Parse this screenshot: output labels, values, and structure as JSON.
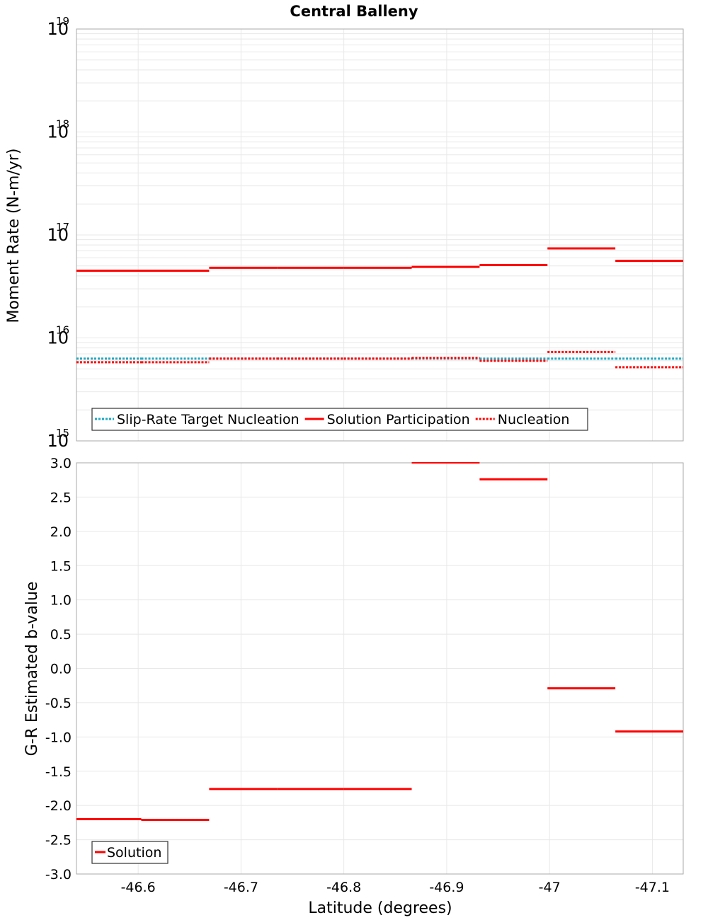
{
  "title": "Central Balleny",
  "x_axis": {
    "label": "Latitude (degrees)",
    "range": [
      -46.54,
      -47.13
    ],
    "ticks": [
      -46.6,
      -46.7,
      -46.8,
      -46.9,
      -47,
      -47.1
    ],
    "tick_labels": [
      "-46.6",
      "-46.7",
      "-46.8",
      "-46.9",
      "-47",
      "-47.1"
    ]
  },
  "colors": {
    "target": "#1ea9c2",
    "solution": "#ff0000",
    "nucleation": "#ff0000",
    "grid": "#e8e8e8",
    "frame": "#aaaaaa"
  },
  "chart_data": [
    {
      "type": "line",
      "subtype": "step",
      "title": "Central Balleny",
      "ylabel": "Moment Rate (N-m/yr)",
      "yscale": "log",
      "ylim": [
        1000000000000000.0,
        1e+19
      ],
      "y_tick_exponents": [
        "15",
        "16",
        "17",
        "18",
        "19"
      ],
      "legend": {
        "position": "bottom-left",
        "entries": [
          "Slip-Rate Target Nucleation",
          "Solution Participation",
          "Nucleation"
        ]
      },
      "segments": [
        [
          -46.54,
          -46.603
        ],
        [
          -46.603,
          -46.669
        ],
        [
          -46.669,
          -46.735
        ],
        [
          -46.735,
          -46.8
        ],
        [
          -46.8,
          -46.866
        ],
        [
          -46.866,
          -46.932
        ],
        [
          -46.932,
          -46.998
        ],
        [
          -46.998,
          -47.064
        ],
        [
          -47.064,
          -47.13
        ]
      ],
      "series": [
        {
          "name": "Slip-Rate Target Nucleation",
          "style": "dotted",
          "values": [
            6300000000000000.0,
            6300000000000000.0,
            6300000000000000.0,
            6300000000000000.0,
            6300000000000000.0,
            6300000000000000.0,
            6300000000000000.0,
            6300000000000000.0,
            6300000000000000.0
          ]
        },
        {
          "name": "Solution Participation",
          "style": "solid",
          "values": [
            4.5e+16,
            4.5e+16,
            4.8e+16,
            4.8e+16,
            4.8e+16,
            4.9e+16,
            5.1e+16,
            7.4e+16,
            5.6e+16
          ]
        },
        {
          "name": "Nucleation",
          "style": "dotted",
          "values": [
            5800000000000000.0,
            5800000000000000.0,
            6300000000000000.0,
            6300000000000000.0,
            6300000000000000.0,
            6400000000000000.0,
            6000000000000000.0,
            7300000000000000.0,
            5200000000000000.0
          ]
        }
      ]
    },
    {
      "type": "line",
      "subtype": "step",
      "ylabel": "G-R Estimated b-value",
      "ylim": [
        -3.0,
        3.0
      ],
      "y_ticks": [
        3.0,
        2.5,
        2.0,
        1.5,
        1.0,
        0.5,
        0.0,
        -0.5,
        -1.0,
        -1.5,
        -2.0,
        -2.5,
        -3.0
      ],
      "y_tick_labels": [
        "3.0",
        "2.5",
        "2.0",
        "1.5",
        "1.0",
        "0.5",
        "0.0",
        "-0.5",
        "-1.0",
        "-1.5",
        "-2.0",
        "-2.5",
        "-3.0"
      ],
      "legend": {
        "position": "bottom-left",
        "entries": [
          "Solution"
        ]
      },
      "segments": [
        [
          -46.54,
          -46.603
        ],
        [
          -46.603,
          -46.669
        ],
        [
          -46.669,
          -46.735
        ],
        [
          -46.735,
          -46.8
        ],
        [
          -46.8,
          -46.866
        ],
        [
          -46.866,
          -46.932
        ],
        [
          -46.932,
          -46.998
        ],
        [
          -46.998,
          -47.064
        ],
        [
          -47.064,
          -47.13
        ]
      ],
      "series": [
        {
          "name": "Solution",
          "style": "solid",
          "values": [
            -2.2,
            -2.21,
            -1.76,
            -1.76,
            -1.76,
            3.0,
            2.76,
            -0.29,
            -0.92
          ]
        }
      ]
    }
  ]
}
